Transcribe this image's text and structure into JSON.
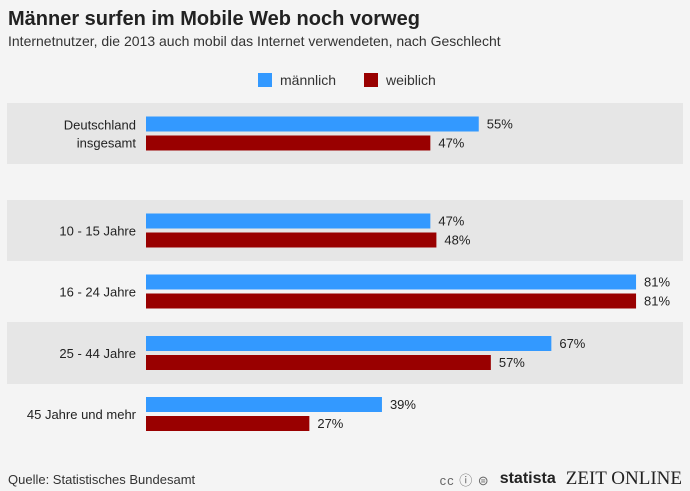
{
  "title": "Männer surfen im Mobile Web noch vorweg",
  "subtitle": "Internetnutzer, die 2013 auch mobil das Internet verwendeten, nach Geschlecht",
  "source": "Quelle: Statistisches Bundesamt",
  "logos": {
    "cc": "cc ⓘ ⊜",
    "statista": "statista",
    "zeit": "ZEIT ONLINE"
  },
  "colors": {
    "male": "#3399ff",
    "female": "#990000",
    "band": "#e6e6e6",
    "background": "#f4f4f4"
  },
  "chart_data": {
    "type": "bar",
    "orientation": "horizontal",
    "title": "Männer surfen im Mobile Web noch vorweg",
    "subtitle": "Internetnutzer, die 2013 auch mobil das Internet verwendeten, nach Geschlecht",
    "categories": [
      "Deutschland insgesamt",
      "10 - 15 Jahre",
      "16 - 24 Jahre",
      "25 - 44 Jahre",
      "45 Jahre und mehr"
    ],
    "series": [
      {
        "name": "männlich",
        "values": [
          55,
          47,
          81,
          67,
          39
        ],
        "labels": [
          "55%",
          "47%",
          "81%",
          "67%",
          "39%"
        ]
      },
      {
        "name": "weiblich",
        "values": [
          47,
          48,
          81,
          57,
          27
        ],
        "labels": [
          "47%",
          "48%",
          "81%",
          "57%",
          "27%"
        ]
      }
    ],
    "xlim": [
      0,
      100
    ],
    "legend": "top-center",
    "grid": false
  }
}
